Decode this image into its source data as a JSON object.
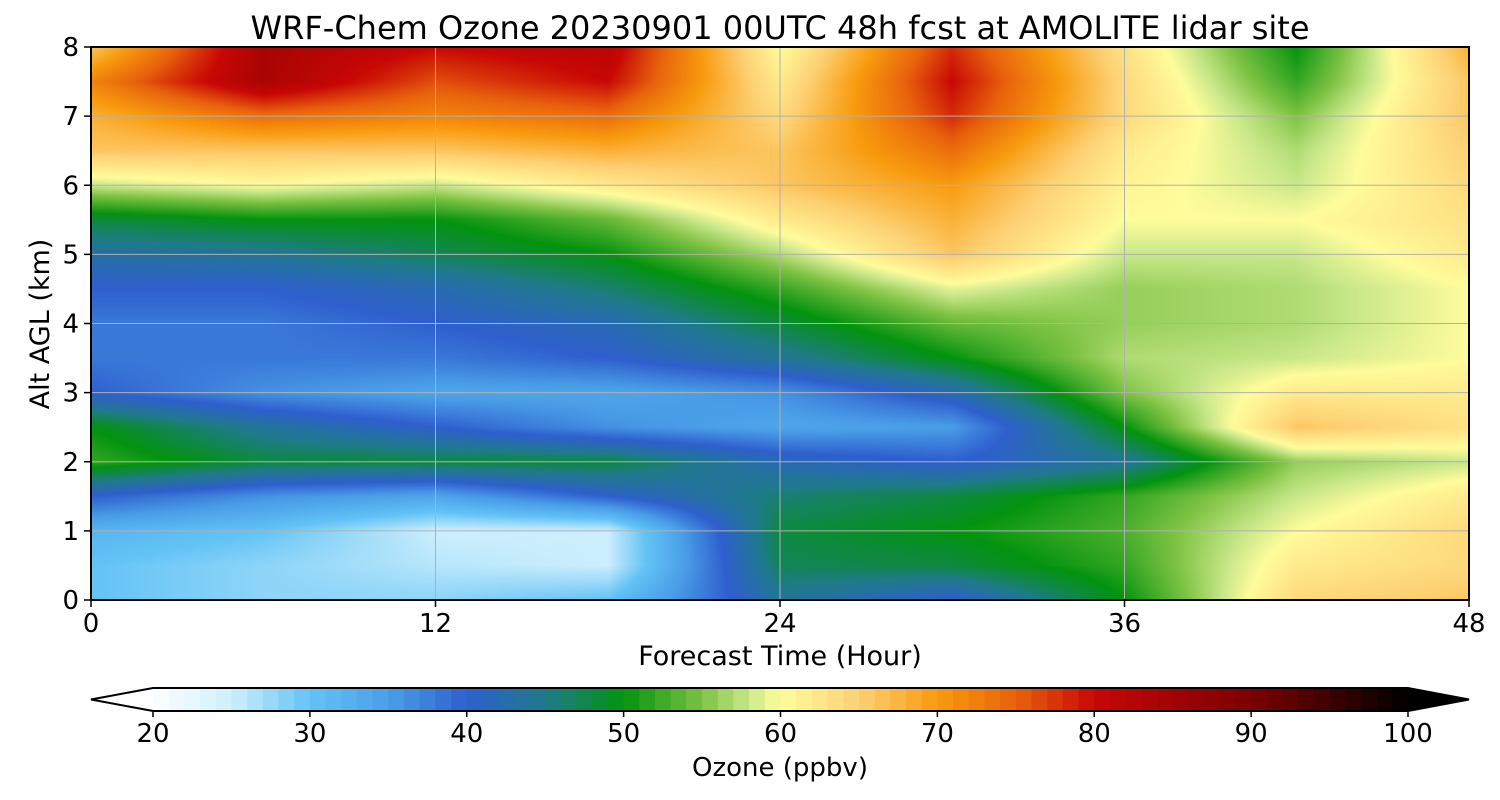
{
  "chart_data": {
    "type": "heatmap",
    "title": "WRF-Chem Ozone  20230901 00UTC 48h fcst at AMOLITE lidar site",
    "xlabel": "Forecast Time (Hour)",
    "ylabel": "Alt AGL (km)",
    "xlim": [
      0,
      48
    ],
    "ylim": [
      0,
      8
    ],
    "x_ticks": [
      "0",
      "12",
      "24",
      "36",
      "48"
    ],
    "y_ticks": [
      "0",
      "1",
      "2",
      "3",
      "4",
      "5",
      "6",
      "7",
      "8"
    ],
    "grid": true,
    "x": [
      0,
      6,
      12,
      18,
      24,
      30,
      36,
      42,
      48
    ],
    "y": [
      0,
      0.5,
      1,
      1.5,
      2,
      2.5,
      3,
      3.5,
      4,
      4.5,
      5,
      5.5,
      6,
      6.5,
      7,
      7.5,
      8
    ],
    "z": [
      [
        30,
        28,
        28,
        30,
        44,
        40,
        50,
        64,
        66
      ],
      [
        30,
        28,
        26,
        25,
        47,
        48,
        52,
        62,
        64
      ],
      [
        32,
        30,
        25,
        25,
        48,
        50,
        53,
        60,
        64
      ],
      [
        40,
        36,
        34,
        40,
        46,
        48,
        52,
        58,
        62
      ],
      [
        52,
        48,
        48,
        48,
        42,
        40,
        44,
        56,
        58
      ],
      [
        50,
        44,
        40,
        36,
        34,
        35,
        50,
        66,
        63
      ],
      [
        40,
        36,
        34,
        34,
        36,
        42,
        55,
        62,
        62
      ],
      [
        38,
        38,
        38,
        40,
        44,
        50,
        57,
        58,
        60
      ],
      [
        38,
        38,
        40,
        42,
        48,
        54,
        56,
        57,
        60
      ],
      [
        40,
        40,
        42,
        46,
        52,
        59,
        56,
        57,
        60
      ],
      [
        43,
        44,
        47,
        50,
        57,
        66,
        58,
        58,
        62
      ],
      [
        48,
        50,
        50,
        54,
        62,
        68,
        60,
        60,
        63
      ],
      [
        58,
        60,
        58,
        62,
        66,
        70,
        61,
        58,
        64
      ],
      [
        66,
        66,
        66,
        68,
        66,
        74,
        62,
        57,
        65
      ],
      [
        68,
        74,
        72,
        74,
        64,
        78,
        64,
        55,
        66
      ],
      [
        72,
        84,
        76,
        80,
        62,
        80,
        64,
        52,
        66
      ],
      [
        66,
        84,
        80,
        82,
        60,
        78,
        63,
        50,
        68
      ]
    ],
    "colorbar": {
      "label": "Ozone  (ppbv)",
      "min": 20,
      "max": 100,
      "ticks": [
        "20",
        "30",
        "40",
        "50",
        "60",
        "70",
        "80",
        "90",
        "100"
      ],
      "extend": "both",
      "stops": [
        [
          20,
          "#ffffff"
        ],
        [
          25,
          "#cdeffd"
        ],
        [
          30,
          "#63c3f5"
        ],
        [
          35,
          "#4a9ee8"
        ],
        [
          40,
          "#2f5fce"
        ],
        [
          45,
          "#1f7a8a"
        ],
        [
          50,
          "#03930f"
        ],
        [
          55,
          "#7dc243"
        ],
        [
          58,
          "#c9e88a"
        ],
        [
          60,
          "#fffc9c"
        ],
        [
          65,
          "#fdd174"
        ],
        [
          70,
          "#f89b0e"
        ],
        [
          75,
          "#e8620c"
        ],
        [
          80,
          "#c80705"
        ],
        [
          90,
          "#7a0000"
        ],
        [
          100,
          "#000000"
        ]
      ]
    }
  }
}
